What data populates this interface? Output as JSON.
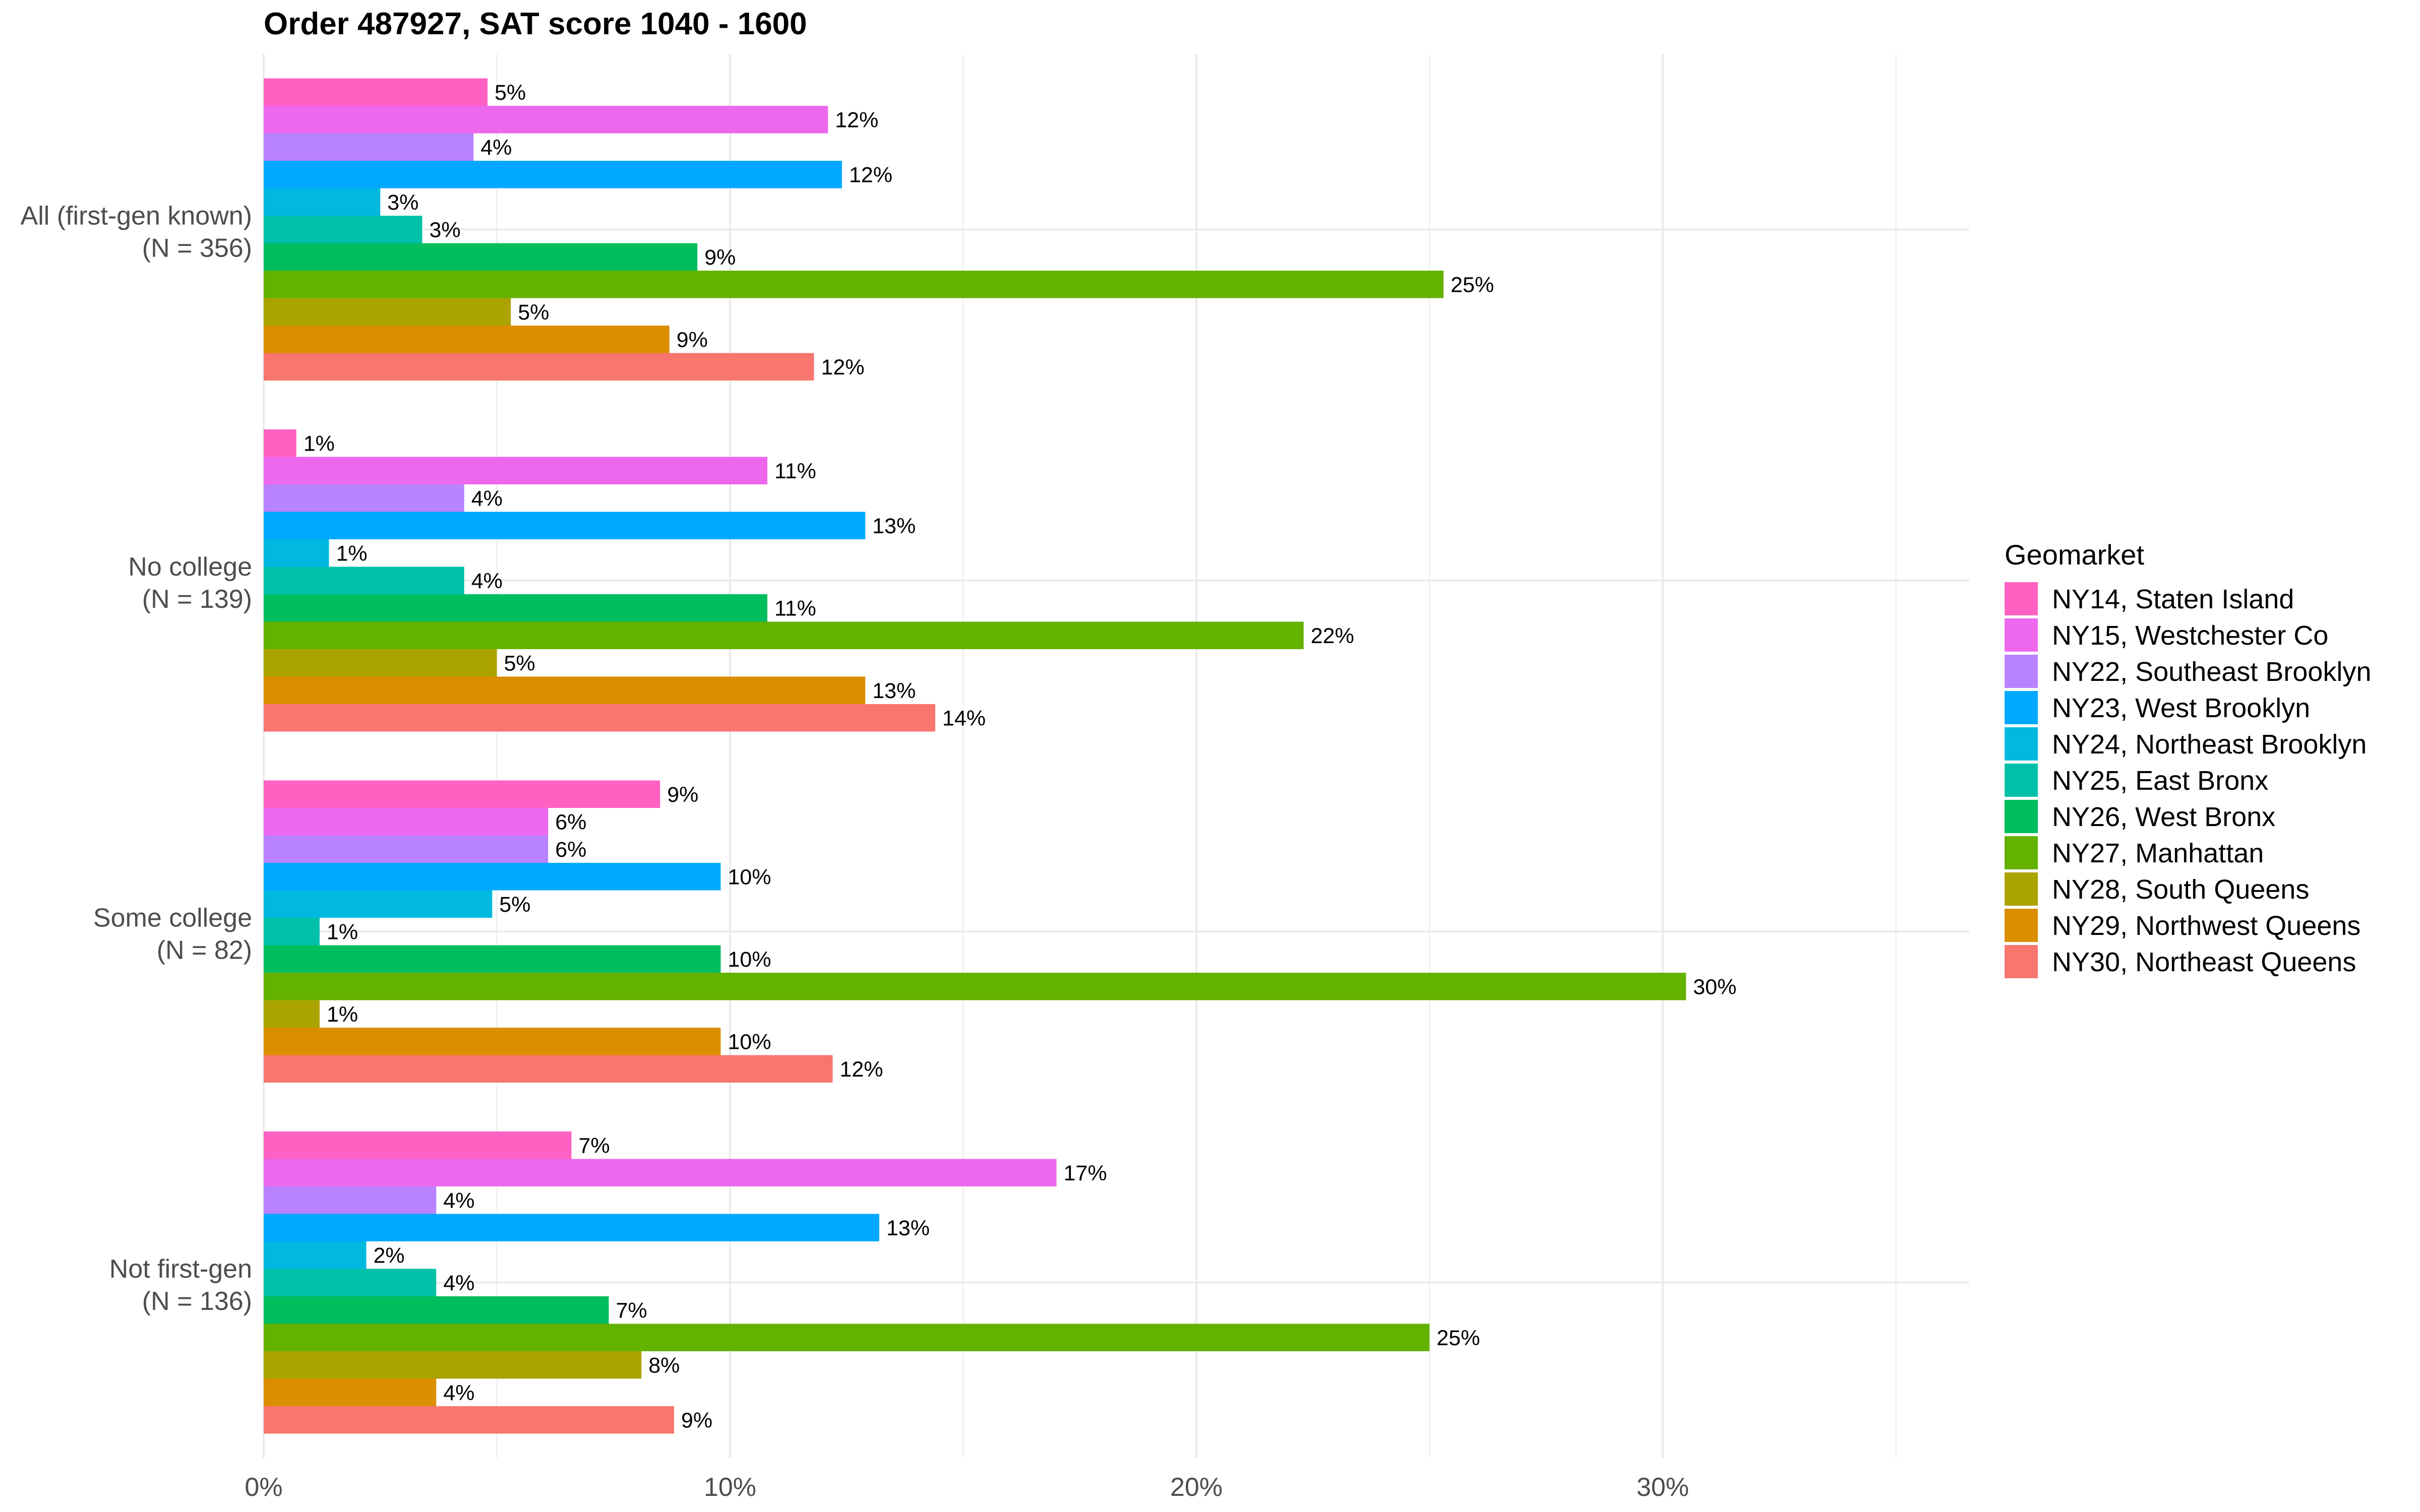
{
  "chart_data": {
    "type": "bar",
    "orientation": "horizontal",
    "title": "Order 487927, SAT score 1040 - 1600",
    "xlabel": "",
    "ylabel": "",
    "xlim": [
      0,
      36.5
    ],
    "x_ticks": [
      0,
      10,
      20,
      30
    ],
    "x_tick_labels": [
      "0%",
      "10%",
      "20%",
      "30%"
    ],
    "grid": true,
    "legend": {
      "title": "Geomarket",
      "position": "right"
    },
    "categories": [
      {
        "label_line1": "All (first-gen known)",
        "label_line2": "(N = 356)"
      },
      {
        "label_line1": "No college",
        "label_line2": "(N = 139)"
      },
      {
        "label_line1": "Some college",
        "label_line2": "(N = 82)"
      },
      {
        "label_line1": "Not first-gen",
        "label_line2": "(N = 136)"
      }
    ],
    "series": [
      {
        "name": "NY14, Staten Island",
        "color": "#FF61C3",
        "values": [
          4.8,
          0.7,
          8.5,
          6.6
        ],
        "labels": [
          "5%",
          "1%",
          "9%",
          "7%"
        ]
      },
      {
        "name": "NY15, Westchester Co",
        "color": "#ED68ED",
        "values": [
          12.1,
          10.8,
          6.1,
          17.0
        ],
        "labels": [
          "12%",
          "11%",
          "6%",
          "17%"
        ]
      },
      {
        "name": "NY22, Southeast Brooklyn",
        "color": "#B983FF",
        "values": [
          4.5,
          4.3,
          6.1,
          3.7
        ],
        "labels": [
          "4%",
          "4%",
          "6%",
          "4%"
        ]
      },
      {
        "name": "NY23, West Brooklyn",
        "color": "#00A9FF",
        "values": [
          12.4,
          12.9,
          9.8,
          13.2
        ],
        "labels": [
          "12%",
          "13%",
          "10%",
          "13%"
        ]
      },
      {
        "name": "NY24, Northeast Brooklyn",
        "color": "#00B8E0",
        "values": [
          2.5,
          1.4,
          4.9,
          2.2
        ],
        "labels": [
          "3%",
          "1%",
          "5%",
          "2%"
        ]
      },
      {
        "name": "NY25, East Bronx",
        "color": "#00C0AA",
        "values": [
          3.4,
          4.3,
          1.2,
          3.7
        ],
        "labels": [
          "3%",
          "4%",
          "1%",
          "4%"
        ]
      },
      {
        "name": "NY26, West Bronx",
        "color": "#00BE5E",
        "values": [
          9.3,
          10.8,
          9.8,
          7.4
        ],
        "labels": [
          "9%",
          "11%",
          "10%",
          "7%"
        ]
      },
      {
        "name": "NY27, Manhattan",
        "color": "#64B200",
        "values": [
          25.3,
          22.3,
          30.5,
          25.0
        ],
        "labels": [
          "25%",
          "22%",
          "30%",
          "25%"
        ]
      },
      {
        "name": "NY28, South Queens",
        "color": "#ABA300",
        "values": [
          5.3,
          5.0,
          1.2,
          8.1
        ],
        "labels": [
          "5%",
          "5%",
          "1%",
          "8%"
        ]
      },
      {
        "name": "NY29, Northwest Queens",
        "color": "#DB8E00",
        "values": [
          8.7,
          12.9,
          9.8,
          3.7
        ],
        "labels": [
          "9%",
          "13%",
          "10%",
          "4%"
        ]
      },
      {
        "name": "NY30, Northeast Queens",
        "color": "#F8766D",
        "values": [
          11.8,
          14.4,
          12.2,
          8.8
        ],
        "labels": [
          "12%",
          "14%",
          "12%",
          "9%"
        ]
      }
    ]
  }
}
